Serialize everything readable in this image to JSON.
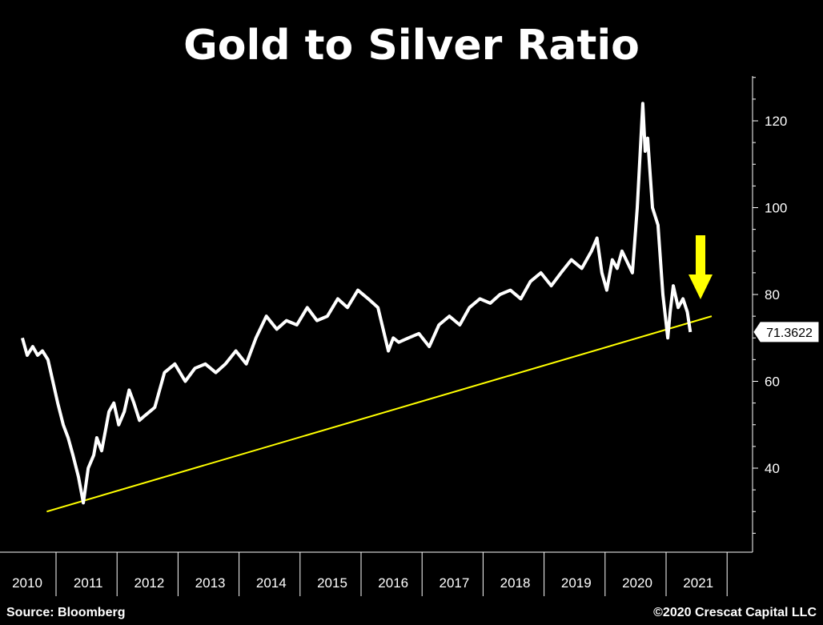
{
  "chart_data": {
    "type": "line",
    "title": "Gold to Silver Ratio",
    "xlabel": "",
    "ylabel": "",
    "ylim": [
      20,
      130
    ],
    "y_ticks": [
      40,
      60,
      80,
      100,
      120
    ],
    "x_tick_labels": [
      "2010",
      "2011",
      "2012",
      "2013",
      "2014",
      "2015",
      "2016",
      "2017",
      "2018",
      "2019",
      "2020",
      "2021"
    ],
    "series": [
      {
        "color": "#ffffff",
        "x": [
          2010.0,
          2010.08,
          2010.17,
          2010.25,
          2010.33,
          2010.42,
          2010.5,
          2010.58,
          2010.67,
          2010.75,
          2010.83,
          2010.92,
          2011.0,
          2011.08,
          2011.17,
          2011.22,
          2011.3,
          2011.42,
          2011.5,
          2011.58,
          2011.67,
          2011.75,
          2011.83,
          2011.92,
          2012.0,
          2012.17,
          2012.33,
          2012.5,
          2012.67,
          2012.83,
          2013.0,
          2013.17,
          2013.33,
          2013.5,
          2013.67,
          2013.83,
          2014.0,
          2014.17,
          2014.33,
          2014.5,
          2014.67,
          2014.83,
          2015.0,
          2015.17,
          2015.33,
          2015.5,
          2015.67,
          2015.83,
          2016.0,
          2016.08,
          2016.17,
          2016.33,
          2016.5,
          2016.67,
          2016.83,
          2017.0,
          2017.17,
          2017.33,
          2017.5,
          2017.67,
          2017.83,
          2018.0,
          2018.17,
          2018.33,
          2018.5,
          2018.67,
          2018.83,
          2019.0,
          2019.17,
          2019.33,
          2019.42,
          2019.5,
          2019.58,
          2019.67,
          2019.75,
          2019.83,
          2020.0,
          2020.08,
          2020.17,
          2020.21,
          2020.25,
          2020.33,
          2020.42,
          2020.5,
          2020.58,
          2020.62,
          2020.67,
          2020.75,
          2020.83,
          2020.9,
          2020.95
        ],
        "values": [
          70,
          66,
          68,
          66,
          67,
          65,
          60,
          55,
          50,
          47,
          43,
          38,
          32,
          40,
          43,
          47,
          44,
          53,
          55,
          50,
          53,
          58,
          55,
          51,
          52,
          54,
          62,
          64,
          60,
          63,
          64,
          62,
          64,
          67,
          64,
          70,
          75,
          72,
          74,
          73,
          77,
          74,
          75,
          79,
          77,
          81,
          79,
          77,
          67,
          70,
          69,
          70,
          71,
          68,
          73,
          75,
          73,
          77,
          79,
          78,
          80,
          81,
          79,
          83,
          85,
          82,
          85,
          88,
          86,
          90,
          93,
          85,
          81,
          88,
          86,
          90,
          85,
          100,
          124,
          113,
          116,
          100,
          96,
          80,
          70,
          76,
          82,
          77,
          79,
          76,
          71.36
        ]
      }
    ],
    "trendline": {
      "color": "#ffff00",
      "from": [
        2010.4,
        30
      ],
      "to": [
        2021.3,
        75
      ]
    },
    "last_value_label": "71.3622",
    "annotation": {
      "type": "arrow",
      "color": "#ffff00"
    },
    "grid": false,
    "legend": "none"
  },
  "footer": {
    "source": "Source: Bloomberg",
    "copyright": "©2020 Crescat Capital LLC"
  }
}
